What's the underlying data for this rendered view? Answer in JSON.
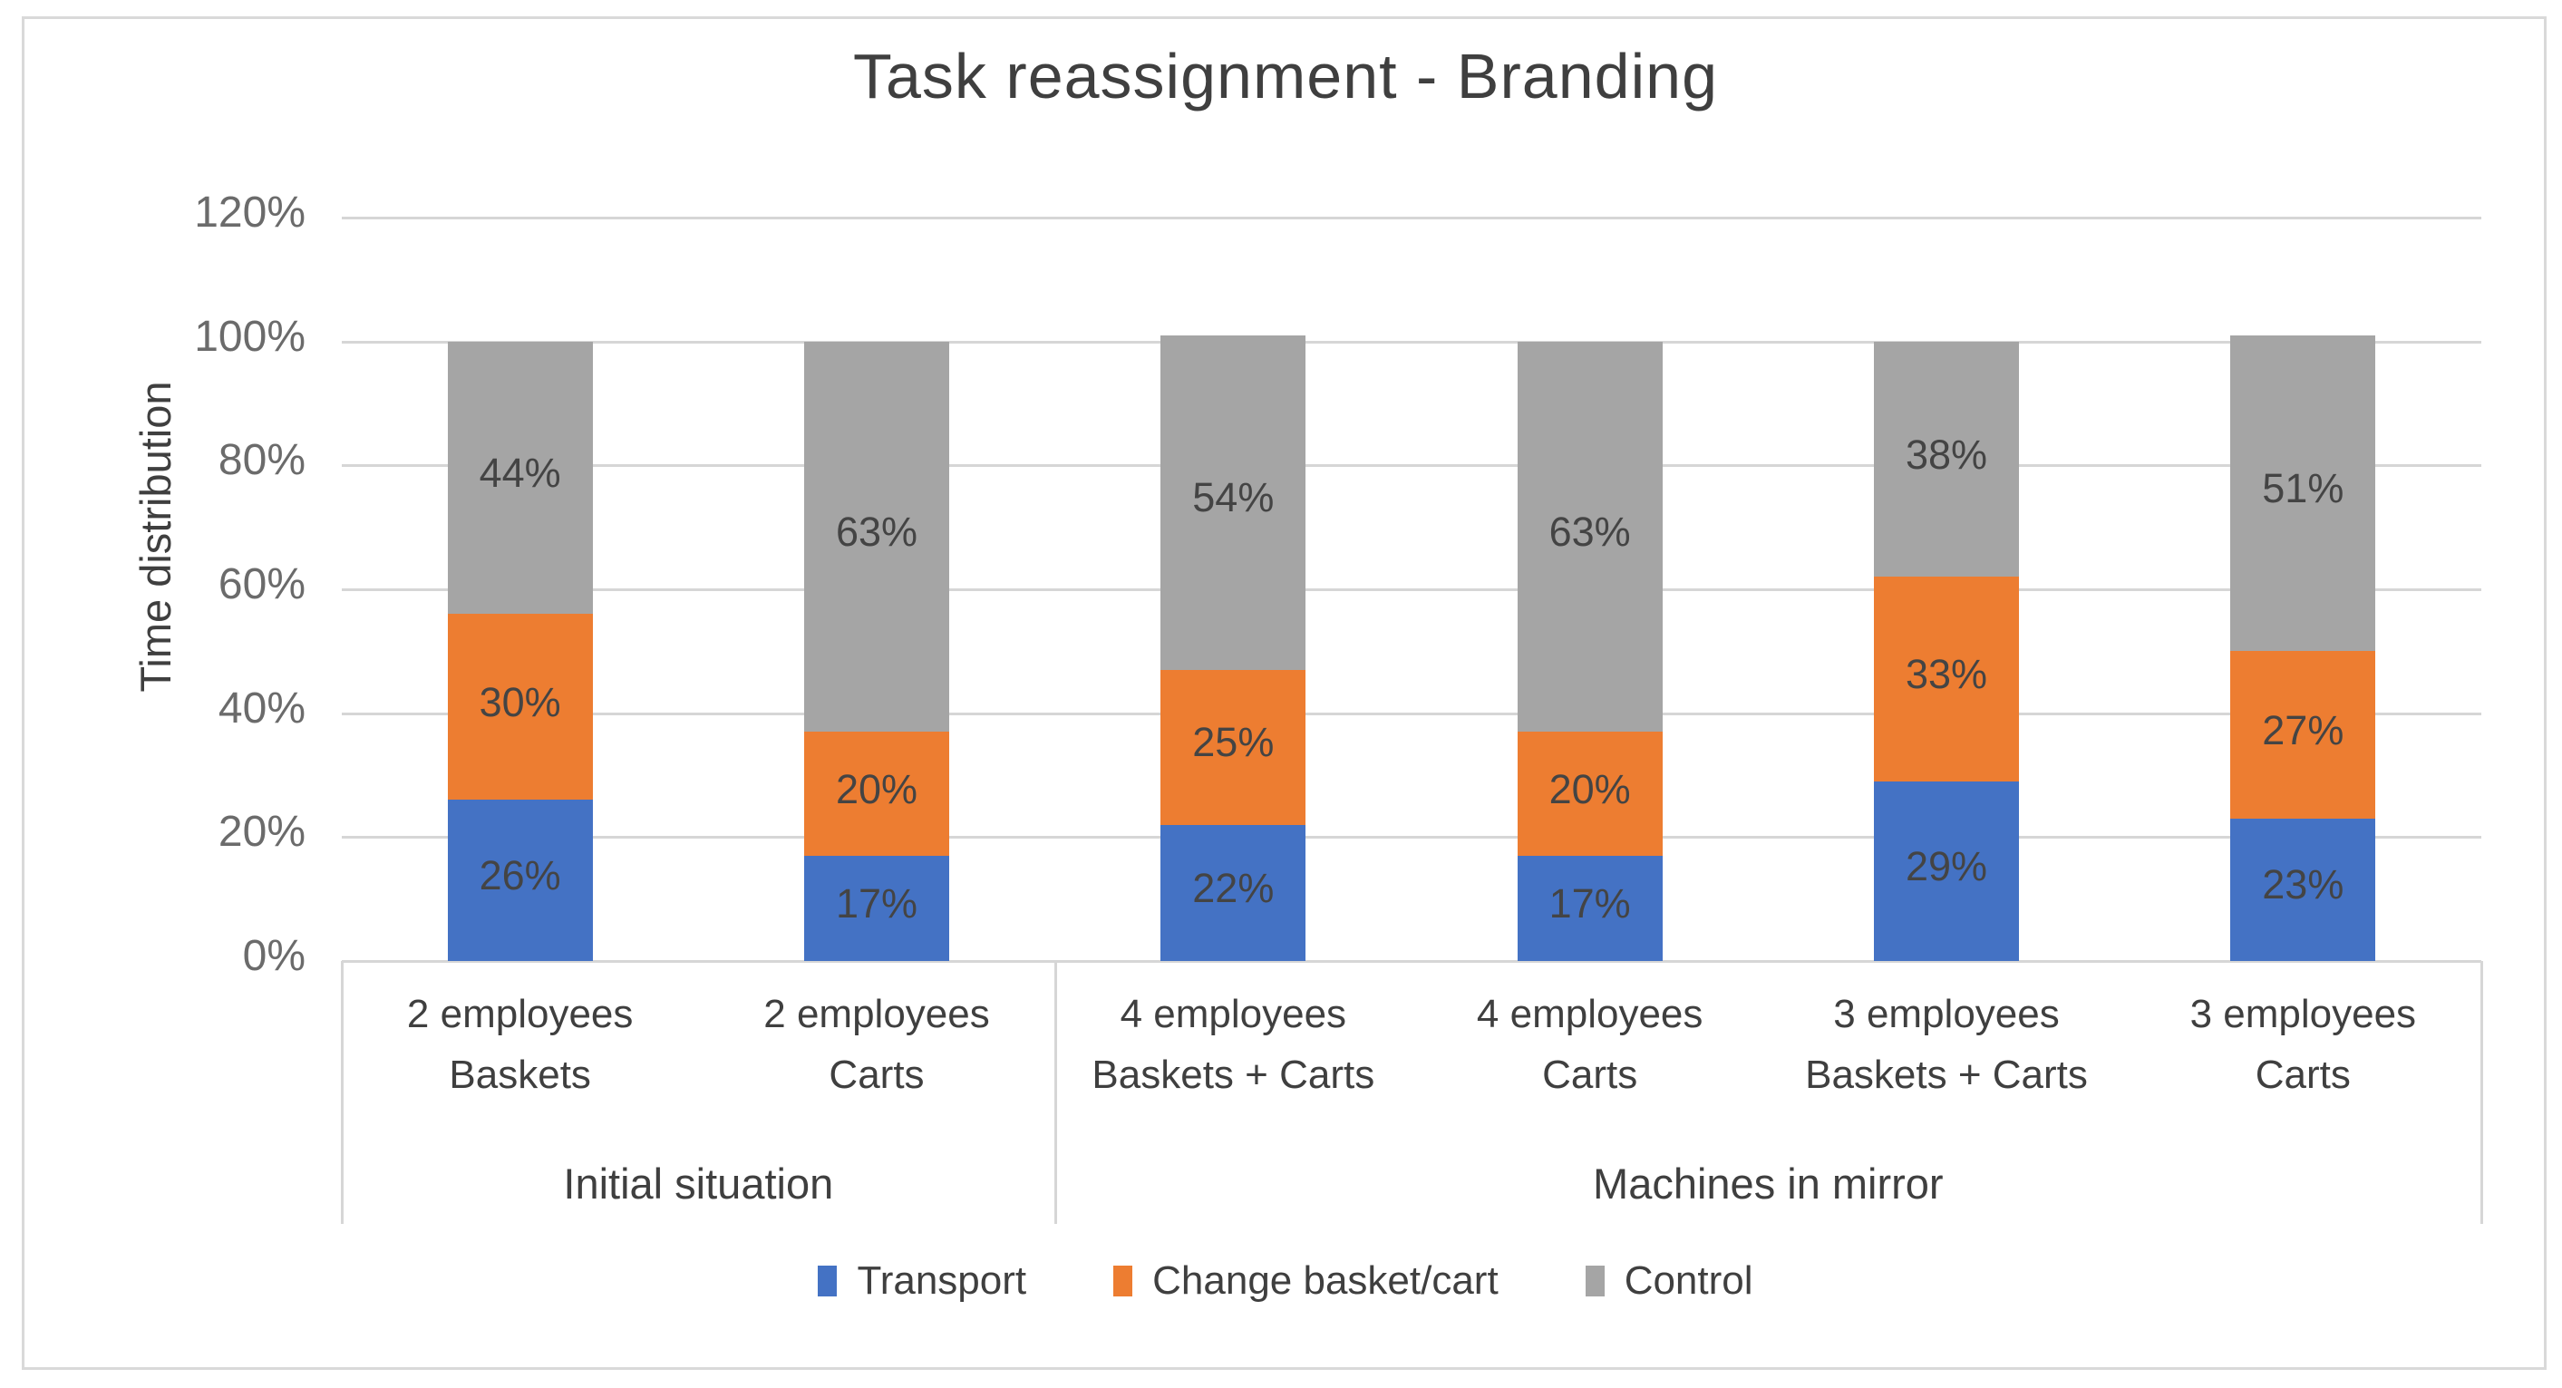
{
  "chart_data": {
    "type": "bar",
    "stacked": true,
    "title": "Task reassignment - Branding",
    "ylabel": "Time distribution",
    "xlabel": "",
    "ylim": [
      0,
      120
    ],
    "ytick_step": 20,
    "ytick_labels": [
      "0%",
      "20%",
      "40%",
      "60%",
      "80%",
      "100%",
      "120%"
    ],
    "grid": true,
    "legend_position": "bottom",
    "data_label_suffix": "%",
    "categories": [
      [
        "2 employees",
        "Baskets"
      ],
      [
        "2 employees",
        "Carts"
      ],
      [
        "4 employees",
        "Baskets + Carts"
      ],
      [
        "4 employees",
        "Carts"
      ],
      [
        "3 employees",
        "Baskets + Carts"
      ],
      [
        "3 employees",
        "Carts"
      ]
    ],
    "groups": [
      {
        "label": "Initial situation",
        "span": [
          0,
          1
        ]
      },
      {
        "label": "Machines in mirror",
        "span": [
          2,
          5
        ]
      }
    ],
    "series": [
      {
        "name": "Transport",
        "color": "#4472C4",
        "values": [
          26,
          17,
          22,
          17,
          29,
          23
        ]
      },
      {
        "name": "Change basket/cart",
        "color": "#ED7D31",
        "values": [
          30,
          20,
          25,
          20,
          33,
          27
        ]
      },
      {
        "name": "Control",
        "color": "#A5A5A5",
        "values": [
          44,
          63,
          54,
          63,
          38,
          51
        ]
      }
    ]
  },
  "style_colors": {
    "frame_border": "#D9D9D9",
    "gridline": "#D6D6D6",
    "tick_text": "#6B6B6B",
    "label_text": "#3F3F3F"
  }
}
